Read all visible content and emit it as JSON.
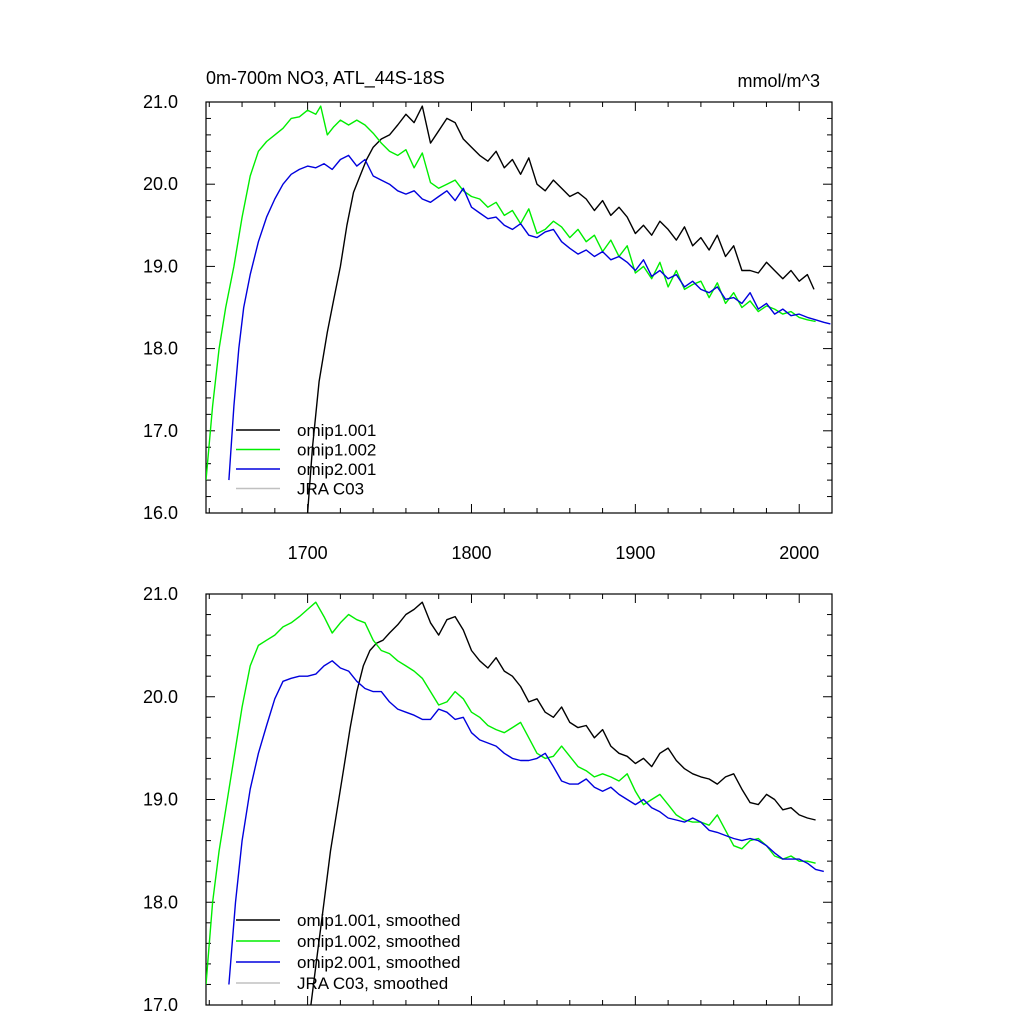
{
  "chart_data": [
    {
      "type": "line",
      "title": "0m-700m NO3, ATL_44S-18S",
      "units": "mmol/m^3",
      "xlabel": "",
      "ylabel": "",
      "xlim": [
        1638,
        2020
      ],
      "ylim": [
        16.0,
        21.0
      ],
      "xticks": [
        "1700",
        "1800",
        "1900",
        "2000"
      ],
      "yticks": [
        "16.0",
        "17.0",
        "18.0",
        "19.0",
        "20.0",
        "21.0"
      ],
      "legend_position": "bottom-left",
      "series": [
        {
          "name": "omip1.001",
          "color": "#000000",
          "x": [
            1700,
            1703,
            1707,
            1712,
            1716,
            1720,
            1724,
            1728,
            1732,
            1736,
            1740,
            1745,
            1750,
            1755,
            1760,
            1765,
            1770,
            1775,
            1780,
            1785,
            1790,
            1795,
            1800,
            1805,
            1810,
            1815,
            1820,
            1825,
            1830,
            1835,
            1840,
            1845,
            1850,
            1855,
            1860,
            1865,
            1870,
            1875,
            1880,
            1885,
            1890,
            1895,
            1900,
            1905,
            1910,
            1915,
            1920,
            1925,
            1930,
            1935,
            1940,
            1945,
            1950,
            1955,
            1960,
            1965,
            1970,
            1975,
            1980,
            1985,
            1990,
            1995,
            2000,
            2005,
            2009
          ],
          "values": [
            16.0,
            16.8,
            17.6,
            18.2,
            18.6,
            19.0,
            19.5,
            19.9,
            20.1,
            20.3,
            20.45,
            20.55,
            20.6,
            20.72,
            20.85,
            20.75,
            20.95,
            20.5,
            20.65,
            20.8,
            20.75,
            20.55,
            20.45,
            20.35,
            20.28,
            20.4,
            20.2,
            20.3,
            20.12,
            20.32,
            20.0,
            19.92,
            20.05,
            19.95,
            19.85,
            19.9,
            19.82,
            19.68,
            19.8,
            19.62,
            19.72,
            19.6,
            19.4,
            19.5,
            19.38,
            19.55,
            19.45,
            19.32,
            19.48,
            19.25,
            19.35,
            19.2,
            19.38,
            19.12,
            19.25,
            18.95,
            18.95,
            18.92,
            19.05,
            18.95,
            18.85,
            18.95,
            18.82,
            18.9,
            18.72
          ]
        },
        {
          "name": "omip1.002",
          "color": "#00ee00",
          "x": [
            1638,
            1642,
            1646,
            1650,
            1655,
            1660,
            1665,
            1670,
            1675,
            1680,
            1685,
            1690,
            1695,
            1700,
            1705,
            1708,
            1712,
            1716,
            1720,
            1725,
            1730,
            1735,
            1740,
            1745,
            1750,
            1755,
            1760,
            1765,
            1770,
            1775,
            1780,
            1785,
            1790,
            1795,
            1800,
            1805,
            1810,
            1815,
            1820,
            1825,
            1830,
            1835,
            1840,
            1845,
            1850,
            1855,
            1860,
            1865,
            1870,
            1875,
            1880,
            1885,
            1890,
            1895,
            1900,
            1905,
            1910,
            1915,
            1920,
            1925,
            1930,
            1935,
            1940,
            1945,
            1950,
            1955,
            1960,
            1965,
            1970,
            1975,
            1980,
            1985,
            1990,
            1995,
            2000,
            2005,
            2010
          ],
          "values": [
            16.4,
            17.3,
            18.0,
            18.5,
            19.0,
            19.6,
            20.1,
            20.4,
            20.52,
            20.6,
            20.68,
            20.8,
            20.82,
            20.9,
            20.85,
            20.95,
            20.6,
            20.7,
            20.78,
            20.72,
            20.78,
            20.72,
            20.62,
            20.5,
            20.4,
            20.35,
            20.42,
            20.2,
            20.38,
            20.02,
            19.95,
            20.0,
            20.05,
            19.92,
            19.85,
            19.82,
            19.72,
            19.78,
            19.62,
            19.68,
            19.52,
            19.7,
            19.4,
            19.45,
            19.55,
            19.48,
            19.35,
            19.45,
            19.3,
            19.38,
            19.18,
            19.32,
            19.12,
            19.25,
            18.92,
            19.0,
            18.85,
            19.05,
            18.75,
            18.95,
            18.72,
            18.78,
            18.82,
            18.62,
            18.8,
            18.55,
            18.68,
            18.5,
            18.58,
            18.45,
            18.52,
            18.48,
            18.42,
            18.45,
            18.38,
            18.35,
            18.33
          ]
        },
        {
          "name": "omip2.001",
          "color": "#0000dd",
          "x": [
            1652,
            1655,
            1658,
            1661,
            1665,
            1670,
            1675,
            1680,
            1685,
            1690,
            1695,
            1700,
            1705,
            1710,
            1715,
            1720,
            1725,
            1730,
            1735,
            1740,
            1745,
            1750,
            1755,
            1760,
            1765,
            1770,
            1775,
            1780,
            1785,
            1790,
            1795,
            1800,
            1805,
            1810,
            1815,
            1820,
            1825,
            1830,
            1835,
            1840,
            1845,
            1850,
            1855,
            1860,
            1865,
            1870,
            1875,
            1880,
            1885,
            1890,
            1895,
            1900,
            1905,
            1910,
            1915,
            1920,
            1925,
            1930,
            1935,
            1940,
            1945,
            1950,
            1955,
            1960,
            1965,
            1970,
            1975,
            1980,
            1985,
            1990,
            1995,
            2000,
            2005,
            2010,
            2015,
            2019
          ],
          "values": [
            16.4,
            17.3,
            18.0,
            18.5,
            18.9,
            19.3,
            19.6,
            19.82,
            20.0,
            20.12,
            20.18,
            20.22,
            20.2,
            20.25,
            20.18,
            20.3,
            20.35,
            20.22,
            20.3,
            20.1,
            20.05,
            20.0,
            19.92,
            19.88,
            19.92,
            19.82,
            19.78,
            19.85,
            19.92,
            19.8,
            19.95,
            19.72,
            19.65,
            19.58,
            19.6,
            19.5,
            19.45,
            19.52,
            19.38,
            19.35,
            19.42,
            19.45,
            19.3,
            19.22,
            19.15,
            19.2,
            19.12,
            19.18,
            19.08,
            19.12,
            19.05,
            18.95,
            19.08,
            18.88,
            18.95,
            18.85,
            18.9,
            18.75,
            18.82,
            18.72,
            18.68,
            18.75,
            18.6,
            18.62,
            18.55,
            18.68,
            18.48,
            18.55,
            18.42,
            18.48,
            18.4,
            18.42,
            18.38,
            18.35,
            18.32,
            18.3
          ]
        },
        {
          "name": "JRA C03",
          "color": "#c0c0c0",
          "x": [],
          "values": []
        }
      ]
    },
    {
      "type": "line",
      "title": "",
      "xlabel": "",
      "ylabel": "",
      "xlim": [
        1638,
        2020
      ],
      "ylim": [
        17.0,
        21.0
      ],
      "yticks": [
        "17.0",
        "18.0",
        "19.0",
        "20.0",
        "21.0"
      ],
      "legend_position": "bottom-left",
      "series": [
        {
          "name": "omip1.001, smoothed",
          "color": "#000000",
          "x": [
            1702,
            1706,
            1710,
            1714,
            1718,
            1722,
            1726,
            1730,
            1734,
            1738,
            1742,
            1746,
            1750,
            1755,
            1760,
            1765,
            1770,
            1775,
            1780,
            1785,
            1790,
            1795,
            1800,
            1805,
            1810,
            1815,
            1820,
            1825,
            1830,
            1835,
            1840,
            1845,
            1850,
            1855,
            1860,
            1865,
            1870,
            1875,
            1880,
            1885,
            1890,
            1895,
            1900,
            1905,
            1910,
            1915,
            1920,
            1925,
            1930,
            1935,
            1940,
            1945,
            1950,
            1955,
            1960,
            1965,
            1970,
            1975,
            1980,
            1985,
            1990,
            1995,
            2000,
            2005,
            2010
          ],
          "values": [
            17.0,
            17.5,
            18.0,
            18.5,
            18.9,
            19.3,
            19.7,
            20.05,
            20.3,
            20.45,
            20.52,
            20.55,
            20.62,
            20.7,
            20.8,
            20.85,
            20.92,
            20.72,
            20.6,
            20.75,
            20.78,
            20.65,
            20.45,
            20.35,
            20.28,
            20.38,
            20.25,
            20.2,
            20.1,
            19.95,
            19.98,
            19.85,
            19.8,
            19.9,
            19.75,
            19.7,
            19.72,
            19.6,
            19.68,
            19.52,
            19.45,
            19.42,
            19.35,
            19.4,
            19.32,
            19.45,
            19.5,
            19.38,
            19.3,
            19.25,
            19.22,
            19.2,
            19.15,
            19.22,
            19.25,
            19.1,
            18.97,
            18.95,
            19.05,
            19.0,
            18.9,
            18.92,
            18.85,
            18.82,
            18.8
          ]
        },
        {
          "name": "omip1.002, smoothed",
          "color": "#00ee00",
          "x": [
            1638,
            1642,
            1646,
            1650,
            1655,
            1660,
            1665,
            1670,
            1675,
            1680,
            1685,
            1690,
            1695,
            1700,
            1705,
            1710,
            1715,
            1720,
            1725,
            1730,
            1735,
            1740,
            1745,
            1750,
            1755,
            1760,
            1765,
            1770,
            1775,
            1780,
            1785,
            1790,
            1795,
            1800,
            1805,
            1810,
            1815,
            1820,
            1825,
            1830,
            1835,
            1840,
            1845,
            1850,
            1855,
            1860,
            1865,
            1870,
            1875,
            1880,
            1885,
            1890,
            1895,
            1900,
            1905,
            1910,
            1915,
            1920,
            1925,
            1930,
            1935,
            1940,
            1945,
            1950,
            1955,
            1960,
            1965,
            1970,
            1975,
            1980,
            1985,
            1990,
            1995,
            2000,
            2005,
            2010
          ],
          "values": [
            17.2,
            18.0,
            18.5,
            18.9,
            19.4,
            19.9,
            20.3,
            20.5,
            20.55,
            20.6,
            20.68,
            20.72,
            20.78,
            20.85,
            20.92,
            20.78,
            20.62,
            20.72,
            20.8,
            20.75,
            20.72,
            20.55,
            20.45,
            20.42,
            20.35,
            20.3,
            20.25,
            20.18,
            20.05,
            19.92,
            19.95,
            20.05,
            19.98,
            19.85,
            19.8,
            19.72,
            19.68,
            19.65,
            19.7,
            19.75,
            19.6,
            19.45,
            19.4,
            19.42,
            19.52,
            19.42,
            19.32,
            19.28,
            19.22,
            19.25,
            19.22,
            19.18,
            19.25,
            19.08,
            18.95,
            19.0,
            19.05,
            18.95,
            18.85,
            18.8,
            18.78,
            18.78,
            18.75,
            18.85,
            18.7,
            18.55,
            18.52,
            18.6,
            18.62,
            18.55,
            18.45,
            18.42,
            18.45,
            18.4,
            18.4,
            18.38
          ]
        },
        {
          "name": "omip2.001, smoothed",
          "color": "#0000dd",
          "x": [
            1652,
            1656,
            1660,
            1665,
            1670,
            1675,
            1680,
            1685,
            1690,
            1695,
            1700,
            1705,
            1710,
            1715,
            1720,
            1725,
            1730,
            1735,
            1740,
            1745,
            1750,
            1755,
            1760,
            1765,
            1770,
            1775,
            1780,
            1785,
            1790,
            1795,
            1800,
            1805,
            1810,
            1815,
            1820,
            1825,
            1830,
            1835,
            1840,
            1845,
            1850,
            1855,
            1860,
            1865,
            1870,
            1875,
            1880,
            1885,
            1890,
            1895,
            1900,
            1905,
            1910,
            1915,
            1920,
            1925,
            1930,
            1935,
            1940,
            1945,
            1950,
            1955,
            1960,
            1965,
            1970,
            1975,
            1980,
            1985,
            1990,
            1995,
            2000,
            2005,
            2010,
            2015
          ],
          "values": [
            17.2,
            18.0,
            18.6,
            19.1,
            19.45,
            19.72,
            19.98,
            20.15,
            20.18,
            20.2,
            20.2,
            20.22,
            20.3,
            20.35,
            20.28,
            20.25,
            20.15,
            20.08,
            20.05,
            20.05,
            19.95,
            19.88,
            19.85,
            19.82,
            19.78,
            19.78,
            19.88,
            19.85,
            19.78,
            19.8,
            19.65,
            19.58,
            19.55,
            19.52,
            19.45,
            19.4,
            19.38,
            19.38,
            19.4,
            19.45,
            19.32,
            19.18,
            19.15,
            19.15,
            19.2,
            19.12,
            19.08,
            19.12,
            19.05,
            19.0,
            18.95,
            19.0,
            18.92,
            18.88,
            18.82,
            18.8,
            18.78,
            18.82,
            18.78,
            18.7,
            18.68,
            18.65,
            18.62,
            18.6,
            18.62,
            18.6,
            18.55,
            18.48,
            18.42,
            18.42,
            18.42,
            18.38,
            18.32,
            18.3
          ]
        },
        {
          "name": "JRA C03, smoothed",
          "color": "#c0c0c0",
          "x": [],
          "values": []
        }
      ]
    }
  ]
}
